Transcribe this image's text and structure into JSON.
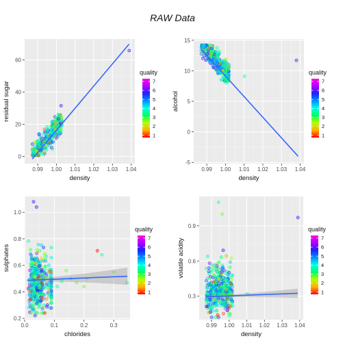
{
  "figure": {
    "title": "RAW Data"
  },
  "legend": {
    "title": "quality",
    "breaks": [
      1,
      2,
      3,
      4,
      5,
      6,
      7
    ],
    "palette": [
      "#ff0000",
      "#ffb000",
      "#b4ff00",
      "#00ff60",
      "#00ffe8",
      "#0090ff",
      "#2020ff",
      "#b000ff",
      "#ff00e0"
    ]
  },
  "chart_data": [
    {
      "type": "scatter",
      "xlabel": "density",
      "ylabel": "residual sugar",
      "xlim": [
        0.983,
        1.042
      ],
      "ylim": [
        -4.5,
        73
      ],
      "xticks": [
        0.99,
        1.0,
        1.01,
        1.02,
        1.03,
        1.04
      ],
      "xticklabels": [
        "0.99",
        "1.00",
        "1.01",
        "1.02",
        "1.03",
        "1.04"
      ],
      "yticks": [
        0,
        20,
        40,
        60
      ],
      "yticklabels": [
        "0",
        "20",
        "40",
        "60"
      ],
      "cluster": {
        "x": [
          0.987,
          1.003
        ],
        "y": [
          0.6,
          26
        ],
        "pattern": "positive",
        "n": 380
      },
      "points": [
        {
          "x": 1.0025,
          "y": 31.5,
          "q": 6
        },
        {
          "x": 1.039,
          "y": 65.8,
          "q": 6
        }
      ],
      "fit": {
        "x": [
          0.9871,
          1.0389
        ],
        "y": [
          -1.6,
          69.8
        ],
        "color": "#3366ff",
        "band": false
      }
    },
    {
      "type": "scatter",
      "xlabel": "density",
      "ylabel": "alcohol",
      "xlim": [
        0.983,
        1.042
      ],
      "ylim": [
        -5.2,
        15.2
      ],
      "xticks": [
        0.99,
        1.0,
        1.01,
        1.02,
        1.03,
        1.04
      ],
      "xticklabels": [
        "0.99",
        "1.00",
        "1.01",
        "1.02",
        "1.03",
        "1.04"
      ],
      "yticks": [
        -5,
        0,
        5,
        10,
        15
      ],
      "yticklabels": [
        "-5",
        "0",
        "5",
        "10",
        "15"
      ],
      "cluster": {
        "x": [
          0.987,
          1.002
        ],
        "y": [
          8.3,
          14.2
        ],
        "pattern": "negative",
        "n": 380
      },
      "points": [
        {
          "x": 1.038,
          "y": 11.7,
          "q": 6
        },
        {
          "x": 1.0102,
          "y": 9.1,
          "q": 4
        },
        {
          "x": 1.0005,
          "y": 8.0,
          "q": 4
        }
      ],
      "fit": {
        "x": [
          0.9871,
          1.0389
        ],
        "y": [
          13.5,
          -4.0
        ],
        "color": "#3366ff",
        "band": false
      }
    },
    {
      "type": "scatter",
      "xlabel": "chlorides",
      "ylabel": "sulphates",
      "xlim": [
        0.0,
        0.355
      ],
      "ylim": [
        0.19,
        1.12
      ],
      "xticks": [
        0.0,
        0.1,
        0.2,
        0.3
      ],
      "xticklabels": [
        "0.0",
        "0.1",
        "0.2",
        "0.3"
      ],
      "yticks": [
        0.2,
        0.4,
        0.6,
        0.8,
        1.0
      ],
      "yticklabels": [
        "0.2",
        "0.4",
        "0.6",
        "0.8",
        "1.0"
      ],
      "cluster": {
        "x": [
          0.012,
          0.09
        ],
        "y": [
          0.24,
          1.02
        ],
        "pattern": "chlorides",
        "n": 420
      },
      "points": [
        {
          "x": 0.245,
          "y": 0.71,
          "q": 1
        },
        {
          "x": 0.26,
          "y": 0.68,
          "q": 4
        },
        {
          "x": 0.3,
          "y": 0.55,
          "q": 3
        },
        {
          "x": 0.21,
          "y": 0.5,
          "q": 3
        },
        {
          "x": 0.155,
          "y": 0.5,
          "q": 4
        },
        {
          "x": 0.125,
          "y": 0.48,
          "q": 4
        },
        {
          "x": 0.175,
          "y": 0.47,
          "q": 3
        },
        {
          "x": 0.11,
          "y": 0.44,
          "q": 4
        },
        {
          "x": 0.14,
          "y": 0.56,
          "q": 3
        },
        {
          "x": 0.2,
          "y": 0.44,
          "q": 3
        },
        {
          "x": 0.345,
          "y": 0.47,
          "q": 4
        },
        {
          "x": 0.03,
          "y": 1.08,
          "q": 6
        },
        {
          "x": 0.04,
          "y": 1.04,
          "q": 6
        },
        {
          "x": 0.035,
          "y": 0.22,
          "q": 6
        }
      ],
      "fit": {
        "x": [
          0.009,
          0.346
        ],
        "y": [
          0.487,
          0.518
        ],
        "color": "#3366ff",
        "band": true,
        "band_half_width_start": 0.012,
        "band_half_width_end": 0.065
      }
    },
    {
      "type": "scatter",
      "xlabel": "density",
      "ylabel": "volatile acidity",
      "xlim": [
        0.983,
        1.042
      ],
      "ylim": [
        0.1,
        1.15
      ],
      "xticks": [
        0.99,
        1.0,
        1.01,
        1.02,
        1.03,
        1.04
      ],
      "xticklabels": [
        "0.99",
        "1.00",
        "1.01",
        "1.02",
        "1.03",
        "1.04"
      ],
      "yticks": [
        0.3,
        0.6,
        0.9
      ],
      "yticklabels": [
        "0.3",
        "0.6",
        "0.9"
      ],
      "cluster": {
        "x": [
          0.987,
          1.002
        ],
        "y": [
          0.12,
          0.88
        ],
        "pattern": "acidity",
        "n": 420
      },
      "points": [
        {
          "x": 1.039,
          "y": 0.97,
          "q": 6
        },
        {
          "x": 1.0103,
          "y": 0.32,
          "q": 4
        },
        {
          "x": 0.994,
          "y": 1.1,
          "q": 4
        },
        {
          "x": 0.996,
          "y": 1.0,
          "q": 3
        }
      ],
      "fit": {
        "x": [
          0.9871,
          1.0389
        ],
        "y": [
          0.295,
          0.325
        ],
        "color": "#3366ff",
        "band": true,
        "band_half_width_start": 0.006,
        "band_half_width_end": 0.04
      }
    }
  ]
}
